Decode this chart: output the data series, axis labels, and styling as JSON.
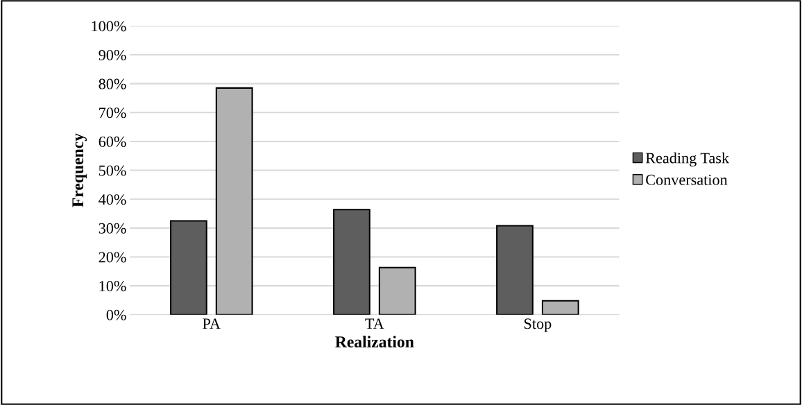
{
  "chart_data": {
    "type": "bar",
    "xlabel": "Realization",
    "ylabel": "Frequency",
    "categories": [
      "PA",
      "TA",
      "Stop"
    ],
    "series": [
      {
        "name": "Reading Task",
        "color": "#5e5e5e",
        "values": [
          32.5,
          36.4,
          30.8
        ]
      },
      {
        "name": "Conversation",
        "color": "#b1b1b1",
        "values": [
          78.5,
          16.3,
          4.8
        ]
      }
    ],
    "ylim": [
      0,
      100
    ],
    "yticks": [
      {
        "value": 0,
        "label": "0%"
      },
      {
        "value": 10,
        "label": "10%"
      },
      {
        "value": 20,
        "label": "20%"
      },
      {
        "value": 30,
        "label": "30%"
      },
      {
        "value": 40,
        "label": "40%"
      },
      {
        "value": 50,
        "label": "50%"
      },
      {
        "value": 60,
        "label": "60%"
      },
      {
        "value": 70,
        "label": "70%"
      },
      {
        "value": 80,
        "label": "80%"
      },
      {
        "value": 90,
        "label": "90%"
      },
      {
        "value": 100,
        "label": "100%"
      }
    ],
    "grid": "y",
    "legend": "right"
  }
}
